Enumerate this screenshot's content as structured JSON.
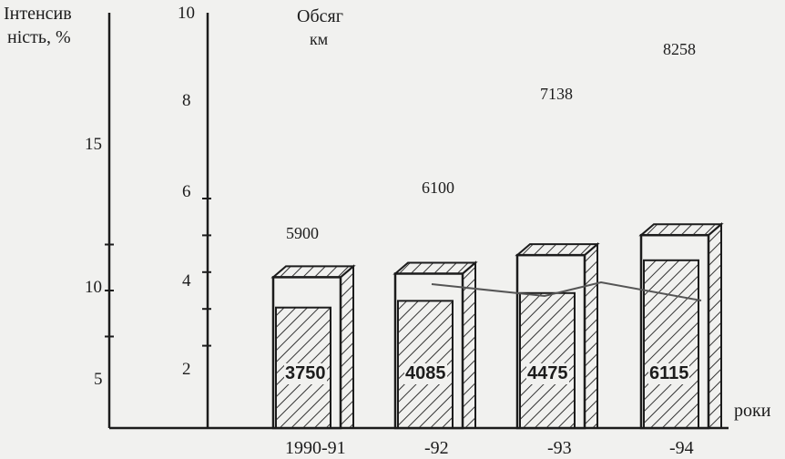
{
  "chart_data": {
    "type": "bar",
    "categories": [
      "1990-91",
      "-92",
      "-93",
      "-94"
    ],
    "series": [
      {
        "values": [
          5900,
          6100,
          7138,
          8258
        ]
      },
      {
        "values": [
          3750,
          4085,
          4475,
          6115
        ]
      }
    ],
    "line_values": [
      null,
      4.0,
      3.0,
      3.0
    ],
    "left_axis": {
      "label_line1": "Інтенсив",
      "label_line2": "ність, %",
      "ticks": [
        "5",
        "10",
        "15"
      ],
      "range": [
        0,
        20
      ]
    },
    "right_axis": {
      "label_line1": "Обсяг",
      "label_line2": "км",
      "ticks": [
        "2",
        "4",
        "6",
        "8",
        "10"
      ],
      "range": [
        0,
        10
      ]
    },
    "xlabel": "роки",
    "colors": {
      "ink": "#1c1c1c",
      "paper": "#f1f1ef",
      "hatch": "#333333"
    }
  }
}
